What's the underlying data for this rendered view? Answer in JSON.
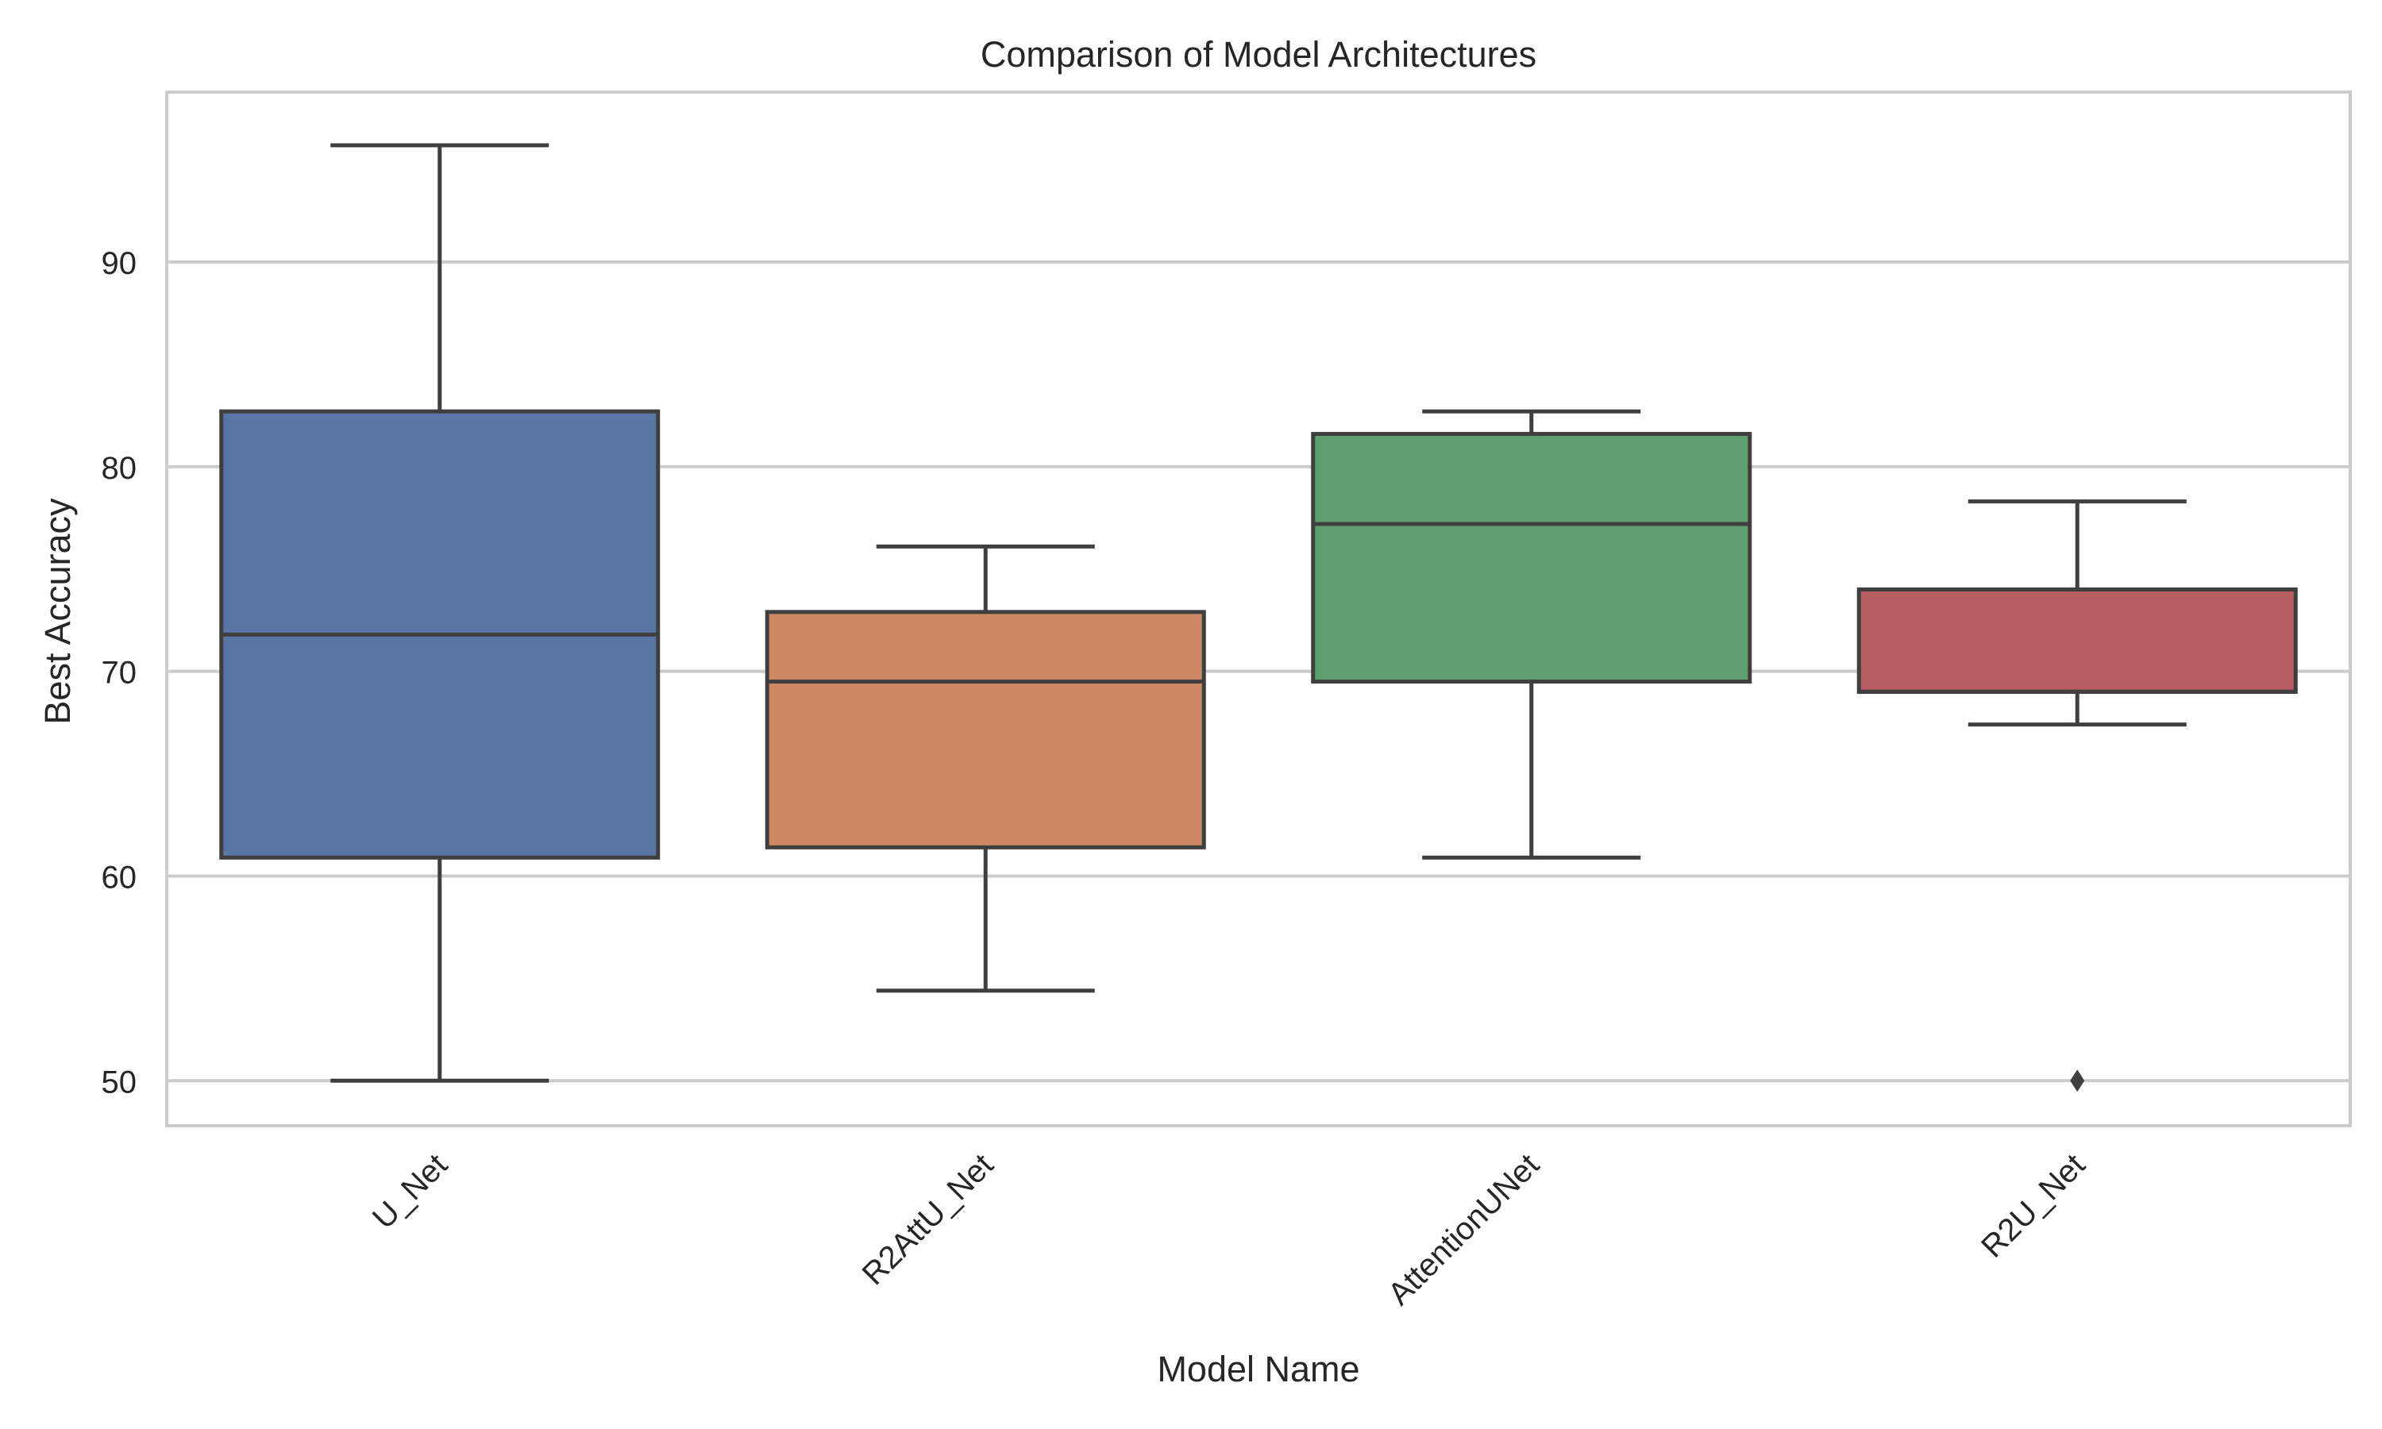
{
  "chart_data": {
    "type": "box",
    "title": "Comparison of Model Architectures",
    "xlabel": "Model Name",
    "ylabel": "Best Accuracy",
    "ylim": [
      47.8,
      98.3
    ],
    "yticks": [
      50,
      60,
      70,
      80,
      90
    ],
    "grid": true,
    "series": [
      {
        "name": "U_Net",
        "color": "#5975a4",
        "whisker_low": 50.0,
        "q1": 60.9,
        "median": 71.8,
        "q3": 82.7,
        "whisker_high": 95.7,
        "outliers": []
      },
      {
        "name": "R2AttU_Net",
        "color": "#cc8963",
        "whisker_low": 54.4,
        "q1": 61.4,
        "median": 69.5,
        "q3": 72.9,
        "whisker_high": 76.1,
        "outliers": []
      },
      {
        "name": "AttentionUNet",
        "color": "#5f9e6e",
        "whisker_low": 60.9,
        "q1": 69.5,
        "median": 77.2,
        "q3": 81.6,
        "whisker_high": 82.7,
        "outliers": []
      },
      {
        "name": "R2U_Net",
        "color": "#b55d60",
        "whisker_low": 67.4,
        "q1": 69.0,
        "median": 69.0,
        "q3": 74.0,
        "whisker_high": 78.3,
        "outliers": [
          50.0
        ]
      }
    ]
  }
}
